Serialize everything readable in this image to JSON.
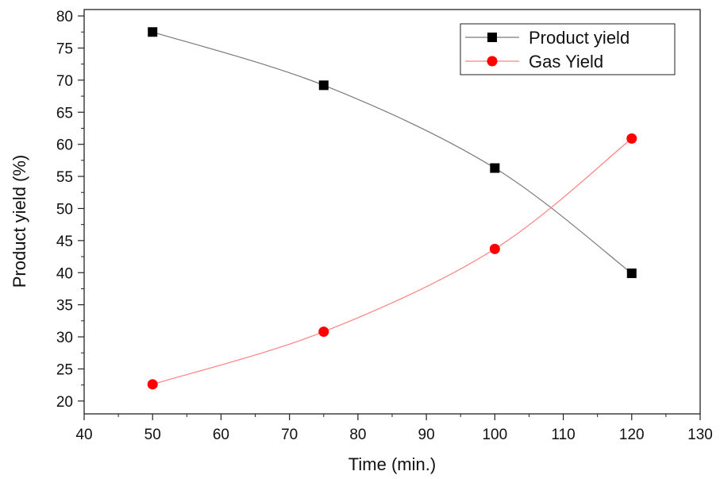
{
  "chart_data": {
    "type": "line",
    "xlabel": "Time (min.)",
    "ylabel": "Product yield (%)",
    "xlim": [
      40,
      130
    ],
    "ylim": [
      18,
      81
    ],
    "x_ticks": [
      40,
      50,
      60,
      70,
      80,
      90,
      100,
      110,
      120,
      130
    ],
    "y_ticks": [
      20,
      25,
      30,
      35,
      40,
      45,
      50,
      55,
      60,
      65,
      70,
      75,
      80
    ],
    "grid": false,
    "legend_position": "top-right",
    "series": [
      {
        "name": "Product yield",
        "marker": "square",
        "color": "#000000",
        "line_color": "#7a7a7a",
        "x": [
          50,
          75,
          100,
          120
        ],
        "y": [
          77.5,
          69.2,
          56.3,
          39.9
        ]
      },
      {
        "name": "Gas Yield",
        "marker": "circle",
        "color": "#ff0000",
        "line_color": "#ff8080",
        "x": [
          50,
          75,
          100,
          120
        ],
        "y": [
          22.6,
          30.8,
          43.7,
          60.9
        ]
      }
    ]
  }
}
